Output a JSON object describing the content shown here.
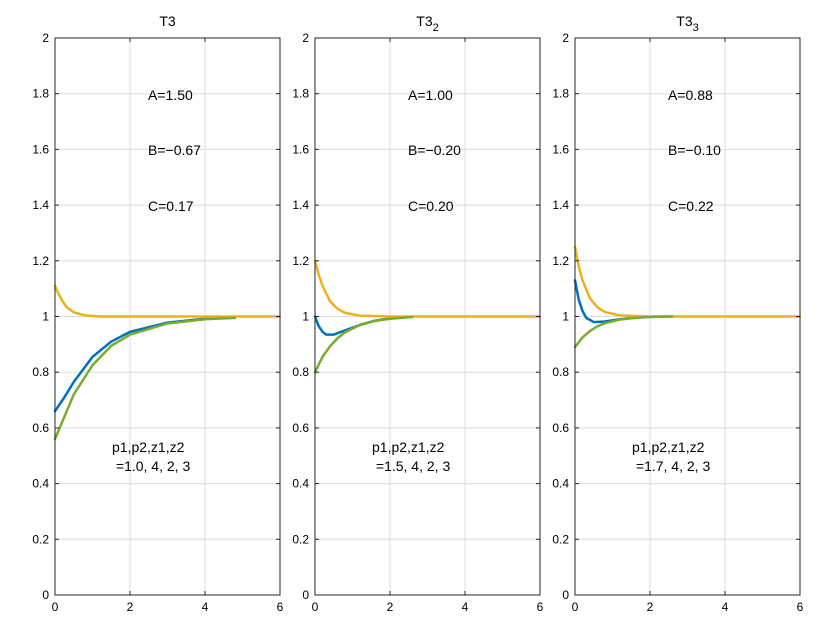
{
  "chart_data": [
    {
      "type": "line",
      "title": "T3",
      "title_subscript": "",
      "xlim": [
        0,
        6
      ],
      "ylim": [
        0,
        2
      ],
      "xticks": [
        "0",
        "2",
        "4",
        "6"
      ],
      "yticks": [
        "0",
        "0.2",
        "0.4",
        "0.6",
        "0.8",
        "1",
        "1.2",
        "1.4",
        "1.6",
        "1.8",
        "2"
      ],
      "grid": true,
      "annotations": {
        "A": "A=1.50",
        "B": "B=−0.67",
        "C": "C=0.17",
        "params_line1": "p1,p2,z1,z2",
        "params_line2": " =1.0, 4, 2, 3"
      },
      "series": [
        {
          "name": "blue",
          "color": "#0072BD",
          "x": [
            0,
            0.25,
            0.5,
            1,
            1.5,
            2,
            3,
            4,
            4.8
          ],
          "y": [
            0.66,
            0.71,
            0.765,
            0.855,
            0.91,
            0.945,
            0.978,
            0.992,
            0.996
          ]
        },
        {
          "name": "orange",
          "color": "#EDB120",
          "x": [
            0,
            0.1,
            0.2,
            0.3,
            0.5,
            0.8,
            1.2,
            2,
            6
          ],
          "y": [
            1.11,
            1.08,
            1.055,
            1.035,
            1.015,
            1.004,
            1.0,
            1.0,
            1.0
          ]
        },
        {
          "name": "green",
          "color": "#77AC30",
          "x": [
            0,
            0.25,
            0.5,
            1,
            1.5,
            2,
            3,
            4,
            4.8
          ],
          "y": [
            0.56,
            0.64,
            0.72,
            0.825,
            0.895,
            0.935,
            0.975,
            0.99,
            0.995
          ]
        }
      ]
    },
    {
      "type": "line",
      "title": "T3",
      "title_subscript": "2",
      "xlim": [
        0,
        6
      ],
      "ylim": [
        0,
        2
      ],
      "xticks": [
        "0",
        "2",
        "4",
        "6"
      ],
      "yticks": [
        "0",
        "0.2",
        "0.4",
        "0.6",
        "0.8",
        "1",
        "1.2",
        "1.4",
        "1.6",
        "1.8",
        "2"
      ],
      "grid": true,
      "annotations": {
        "A": "A=1.00",
        "B": "B=−0.20",
        "C": "C=0.20",
        "params_line1": "p1,p2,z1,z2",
        "params_line2": " =1.5, 4, 2, 3"
      },
      "series": [
        {
          "name": "blue",
          "color": "#0072BD",
          "x": [
            0,
            0.1,
            0.2,
            0.3,
            0.5,
            0.8,
            1.2,
            1.6,
            2,
            2.5
          ],
          "y": [
            1.0,
            0.965,
            0.945,
            0.935,
            0.935,
            0.95,
            0.97,
            0.985,
            0.993,
            0.998
          ]
        },
        {
          "name": "orange",
          "color": "#EDB120",
          "x": [
            0,
            0.1,
            0.2,
            0.4,
            0.6,
            0.8,
            1.2,
            2,
            6
          ],
          "y": [
            1.2,
            1.15,
            1.11,
            1.055,
            1.028,
            1.013,
            1.003,
            1.0,
            1.0
          ]
        },
        {
          "name": "green",
          "color": "#77AC30",
          "x": [
            0,
            0.2,
            0.4,
            0.6,
            0.8,
            1.2,
            1.6,
            2,
            2.6
          ],
          "y": [
            0.8,
            0.855,
            0.893,
            0.922,
            0.943,
            0.97,
            0.984,
            0.992,
            0.998
          ]
        }
      ]
    },
    {
      "type": "line",
      "title": "T3",
      "title_subscript": "3",
      "xlim": [
        0,
        6
      ],
      "ylim": [
        0,
        2
      ],
      "xticks": [
        "0",
        "2",
        "4",
        "6"
      ],
      "yticks": [
        "0",
        "0.2",
        "0.4",
        "0.6",
        "0.8",
        "1",
        "1.2",
        "1.4",
        "1.6",
        "1.8",
        "2"
      ],
      "grid": true,
      "annotations": {
        "A": "A=0.88",
        "B": "B=−0.10",
        "C": "C=0.22",
        "params_line1": "p1,p2,z1,z2",
        "params_line2": " =1.7, 4, 2, 3"
      },
      "series": [
        {
          "name": "blue",
          "color": "#0072BD",
          "x": [
            0,
            0.1,
            0.2,
            0.3,
            0.5,
            0.8,
            1.2,
            1.6,
            2,
            2.5
          ],
          "y": [
            1.13,
            1.06,
            1.02,
            0.995,
            0.98,
            0.982,
            0.99,
            0.996,
            0.999,
            1.0
          ]
        },
        {
          "name": "orange",
          "color": "#EDB120",
          "x": [
            0,
            0.1,
            0.2,
            0.4,
            0.6,
            0.8,
            1.2,
            2,
            6
          ],
          "y": [
            1.25,
            1.18,
            1.13,
            1.065,
            1.033,
            1.016,
            1.004,
            1.0,
            1.0
          ]
        },
        {
          "name": "green",
          "color": "#77AC30",
          "x": [
            0,
            0.2,
            0.4,
            0.6,
            0.8,
            1.2,
            1.6,
            2,
            2.6
          ],
          "y": [
            0.89,
            0.925,
            0.948,
            0.965,
            0.976,
            0.989,
            0.995,
            0.998,
            1.0
          ]
        }
      ]
    }
  ]
}
